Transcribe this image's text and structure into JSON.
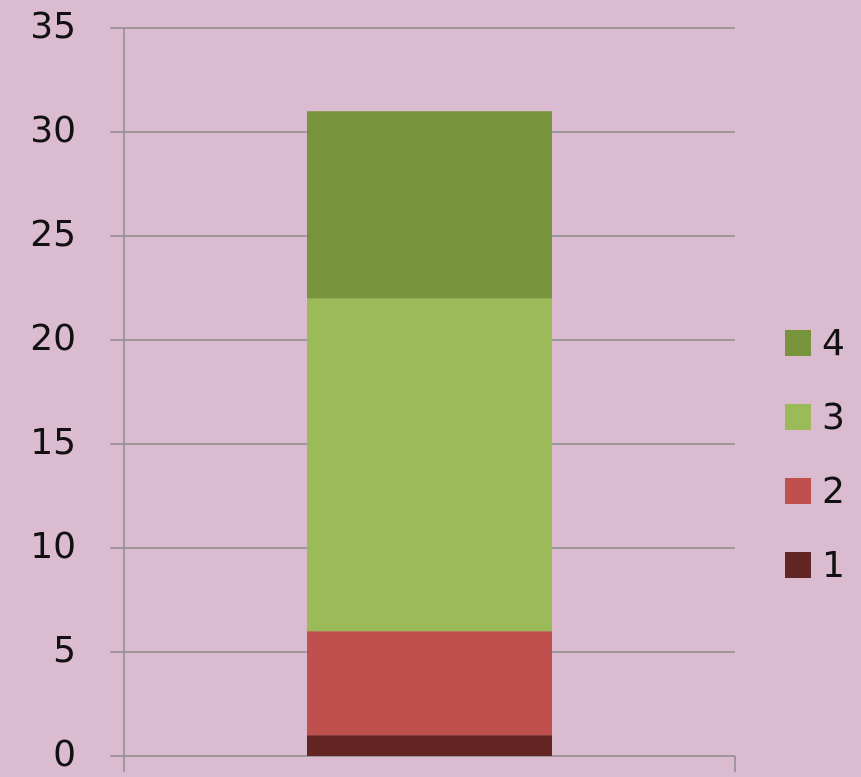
{
  "chart_data": {
    "type": "stacked_bar",
    "categories": [
      null
    ],
    "series": [
      {
        "name": "1",
        "color": "#632523",
        "values": [
          1
        ]
      },
      {
        "name": "2",
        "color": "#c0504d",
        "values": [
          5
        ]
      },
      {
        "name": "3",
        "color": "#9bbb59",
        "values": [
          16
        ]
      },
      {
        "name": "4",
        "color": "#77933c",
        "values": [
          9
        ]
      }
    ],
    "ylim": [
      0,
      35
    ],
    "yticks": [
      0,
      5,
      10,
      15,
      20,
      25,
      30,
      35
    ],
    "grid": true,
    "legend": "right"
  }
}
